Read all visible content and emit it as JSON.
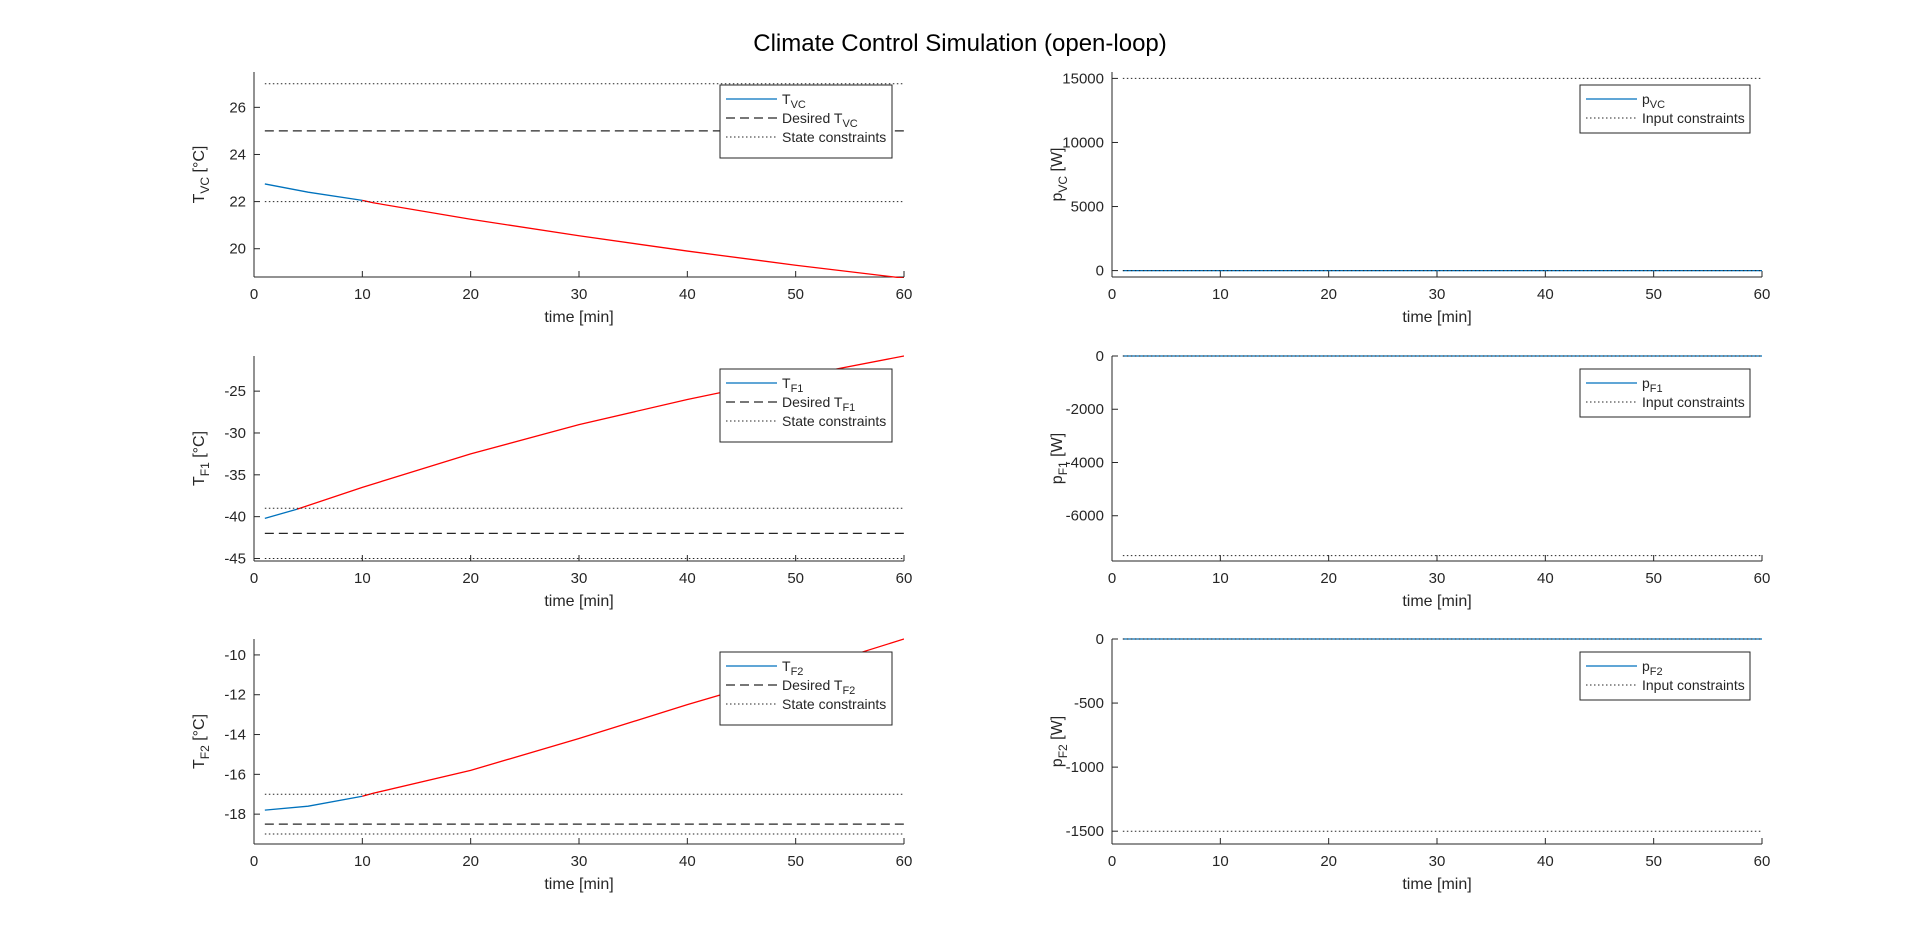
{
  "title": "Climate Control Simulation (open-loop)",
  "colors": {
    "state": "#0072BD",
    "violation": "#FF0000",
    "desired": "#262626",
    "constraint": "#262626",
    "axis": "#262626"
  },
  "chart_data": [
    {
      "type": "line",
      "ylabel": {
        "main": "T",
        "sub": "VC",
        "unit": "[°C]"
      },
      "xlabel": "time [min]",
      "xlim": [
        0,
        60
      ],
      "ylim": [
        18.8,
        27.5
      ],
      "xticks": [
        0,
        10,
        20,
        30,
        40,
        50,
        60
      ],
      "yticks": [
        20,
        22,
        24,
        26
      ],
      "legend_position": "top-right",
      "series": [
        {
          "name": {
            "main": "T",
            "sub": "VC"
          },
          "style": "state",
          "x": [
            1,
            5,
            10,
            11,
            20,
            30,
            40,
            50,
            60
          ],
          "y": [
            22.75,
            22.4,
            22.05,
            21.95,
            21.25,
            20.55,
            19.9,
            19.3,
            18.75
          ]
        },
        {
          "name": {
            "main": "Desired T",
            "sub": "VC"
          },
          "style": "desired",
          "x": [
            1,
            60
          ],
          "y": [
            25,
            25
          ]
        },
        {
          "name": {
            "main": "State constraints",
            "sub": ""
          },
          "style": "constraint",
          "x": [
            1,
            60
          ],
          "y": [
            27,
            27
          ]
        },
        {
          "name": null,
          "style": "constraint",
          "x": [
            1,
            60
          ],
          "y": [
            22,
            22
          ]
        }
      ],
      "violation_threshold": {
        "op": "lt",
        "value": 22
      }
    },
    {
      "type": "line",
      "ylabel": {
        "main": "p",
        "sub": "VC",
        "unit": "[W]"
      },
      "xlabel": "time [min]",
      "xlim": [
        0,
        60
      ],
      "ylim": [
        -500,
        15500
      ],
      "xticks": [
        0,
        10,
        20,
        30,
        40,
        50,
        60
      ],
      "yticks": [
        0,
        5000,
        10000,
        15000
      ],
      "legend_position": "top-right",
      "series": [
        {
          "name": {
            "main": "p",
            "sub": "VC"
          },
          "style": "state",
          "x": [
            1,
            60
          ],
          "y": [
            0,
            0
          ]
        },
        {
          "name": {
            "main": "Input constraints",
            "sub": ""
          },
          "style": "constraint",
          "x": [
            1,
            60
          ],
          "y": [
            15000,
            15000
          ]
        },
        {
          "name": null,
          "style": "constraint",
          "x": [
            1,
            60
          ],
          "y": [
            0,
            0
          ]
        }
      ]
    },
    {
      "type": "line",
      "ylabel": {
        "main": "T",
        "sub": "F1",
        "unit": "[°C]"
      },
      "xlabel": "time [min]",
      "xlim": [
        0,
        60
      ],
      "ylim": [
        -45.3,
        -20.8
      ],
      "xticks": [
        0,
        10,
        20,
        30,
        40,
        50,
        60
      ],
      "yticks": [
        -45,
        -40,
        -35,
        -30,
        -25
      ],
      "legend_position": "top-right",
      "series": [
        {
          "name": {
            "main": "T",
            "sub": "F1"
          },
          "style": "state",
          "x": [
            1,
            4,
            10,
            20,
            30,
            40,
            50,
            60
          ],
          "y": [
            -40.2,
            -39.1,
            -36.5,
            -32.5,
            -29.0,
            -26.0,
            -23.3,
            -20.8
          ]
        },
        {
          "name": {
            "main": "Desired T",
            "sub": "F1"
          },
          "style": "desired",
          "x": [
            1,
            60
          ],
          "y": [
            -42,
            -42
          ]
        },
        {
          "name": {
            "main": "State constraints",
            "sub": ""
          },
          "style": "constraint",
          "x": [
            1,
            60
          ],
          "y": [
            -39,
            -39
          ]
        },
        {
          "name": null,
          "style": "constraint",
          "x": [
            1,
            60
          ],
          "y": [
            -45,
            -45
          ]
        }
      ],
      "violation_threshold": {
        "op": "gt",
        "value": -39
      }
    },
    {
      "type": "line",
      "ylabel": {
        "main": "p",
        "sub": "F1",
        "unit": "[W]"
      },
      "xlabel": "time [min]",
      "xlim": [
        0,
        60
      ],
      "ylim": [
        -7700,
        0
      ],
      "xticks": [
        0,
        10,
        20,
        30,
        40,
        50,
        60
      ],
      "yticks": [
        -6000,
        -4000,
        -2000,
        0
      ],
      "legend_position": "top-right",
      "series": [
        {
          "name": {
            "main": "p",
            "sub": "F1"
          },
          "style": "state",
          "x": [
            1,
            60
          ],
          "y": [
            0,
            0
          ]
        },
        {
          "name": {
            "main": "Input constraints",
            "sub": ""
          },
          "style": "constraint",
          "x": [
            1,
            60
          ],
          "y": [
            -7500,
            -7500
          ]
        },
        {
          "name": null,
          "style": "constraint",
          "x": [
            1,
            60
          ],
          "y": [
            0,
            0
          ]
        }
      ]
    },
    {
      "type": "line",
      "ylabel": {
        "main": "T",
        "sub": "F2",
        "unit": "[°C]"
      },
      "xlabel": "time [min]",
      "xlim": [
        0,
        60
      ],
      "ylim": [
        -19.5,
        -9.2
      ],
      "xticks": [
        0,
        10,
        20,
        30,
        40,
        50,
        60
      ],
      "yticks": [
        -18,
        -16,
        -14,
        -12,
        -10
      ],
      "legend_position": "top-right",
      "series": [
        {
          "name": {
            "main": "T",
            "sub": "F2"
          },
          "style": "state",
          "x": [
            1,
            5,
            10,
            11,
            20,
            30,
            40,
            50,
            60
          ],
          "y": [
            -17.8,
            -17.6,
            -17.1,
            -16.95,
            -15.8,
            -14.2,
            -12.5,
            -10.9,
            -9.2
          ]
        },
        {
          "name": {
            "main": "Desired T",
            "sub": "F2"
          },
          "style": "desired",
          "x": [
            1,
            60
          ],
          "y": [
            -18.5,
            -18.5
          ]
        },
        {
          "name": {
            "main": "State constraints",
            "sub": ""
          },
          "style": "constraint",
          "x": [
            1,
            60
          ],
          "y": [
            -17,
            -17
          ]
        },
        {
          "name": null,
          "style": "constraint",
          "x": [
            1,
            60
          ],
          "y": [
            -19,
            -19
          ]
        }
      ],
      "violation_threshold": {
        "op": "gt",
        "value": -17
      }
    },
    {
      "type": "line",
      "ylabel": {
        "main": "p",
        "sub": "F2",
        "unit": "[W]"
      },
      "xlabel": "time [min]",
      "xlim": [
        0,
        60
      ],
      "ylim": [
        -1600,
        0
      ],
      "xticks": [
        0,
        10,
        20,
        30,
        40,
        50,
        60
      ],
      "yticks": [
        -1500,
        -1000,
        -500,
        0
      ],
      "legend_position": "top-right",
      "series": [
        {
          "name": {
            "main": "p",
            "sub": "F2"
          },
          "style": "state",
          "x": [
            1,
            60
          ],
          "y": [
            0,
            0
          ]
        },
        {
          "name": {
            "main": "Input constraints",
            "sub": ""
          },
          "style": "constraint",
          "x": [
            1,
            60
          ],
          "y": [
            -1500,
            -1500
          ]
        },
        {
          "name": null,
          "style": "constraint",
          "x": [
            1,
            60
          ],
          "y": [
            0,
            0
          ]
        }
      ]
    }
  ]
}
